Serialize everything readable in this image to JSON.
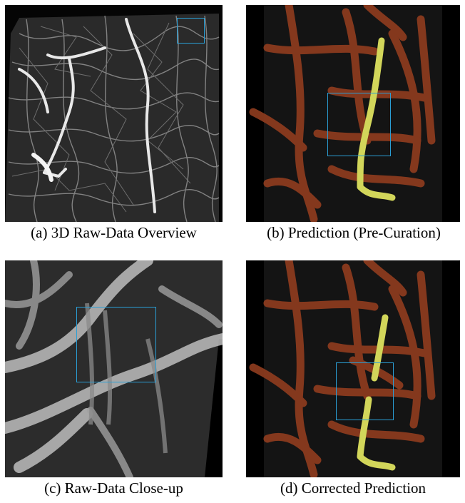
{
  "figure": {
    "panels": [
      {
        "id": "a",
        "caption": "(a) 3D Raw-Data Overview"
      },
      {
        "id": "b",
        "caption": "(b) Prediction (Pre-Curation)"
      },
      {
        "id": "c",
        "caption": "(c) Raw-Data Close-up"
      },
      {
        "id": "d",
        "caption": "(d) Corrected Prediction"
      }
    ],
    "colors": {
      "roi_box": "#2a9fd6",
      "vessel_prediction": "#8a3a1e",
      "highlighted_vessel": "#d2d65a",
      "raw_vessel": "#dcdcdc",
      "background": "#000000"
    }
  }
}
